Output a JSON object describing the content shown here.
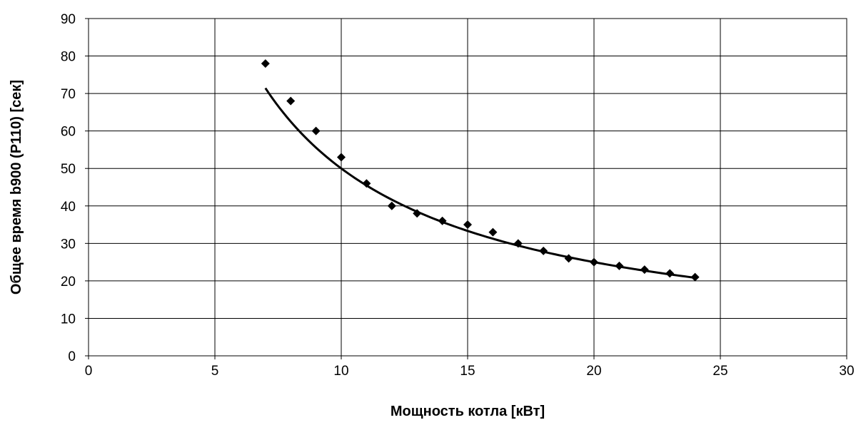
{
  "chart_data": {
    "type": "scatter",
    "title": "",
    "xlabel": "Мощность котла [кВт]",
    "ylabel": "Общее время b900 (P110) [сек]",
    "xlim": [
      0,
      30
    ],
    "ylim": [
      0,
      90
    ],
    "x_ticks": [
      0,
      5,
      10,
      15,
      20,
      25,
      30
    ],
    "y_ticks": [
      0,
      10,
      20,
      30,
      40,
      50,
      60,
      70,
      80,
      90
    ],
    "grid": true,
    "legend": "none",
    "marker": "diamond",
    "color": "#000000",
    "series": [
      {
        "x": [
          7,
          8,
          9,
          10,
          11,
          12,
          13,
          14,
          15,
          16,
          17,
          18,
          19,
          20,
          21,
          22,
          23,
          24
        ],
        "y": [
          78,
          68,
          60,
          53,
          46,
          40,
          38,
          36,
          35,
          33,
          30,
          28,
          26,
          25,
          24,
          23,
          22,
          21
        ]
      }
    ],
    "trendline": {
      "type": "power",
      "coefficient": 500,
      "exponent": -1,
      "x_range": [
        7,
        24
      ]
    }
  }
}
